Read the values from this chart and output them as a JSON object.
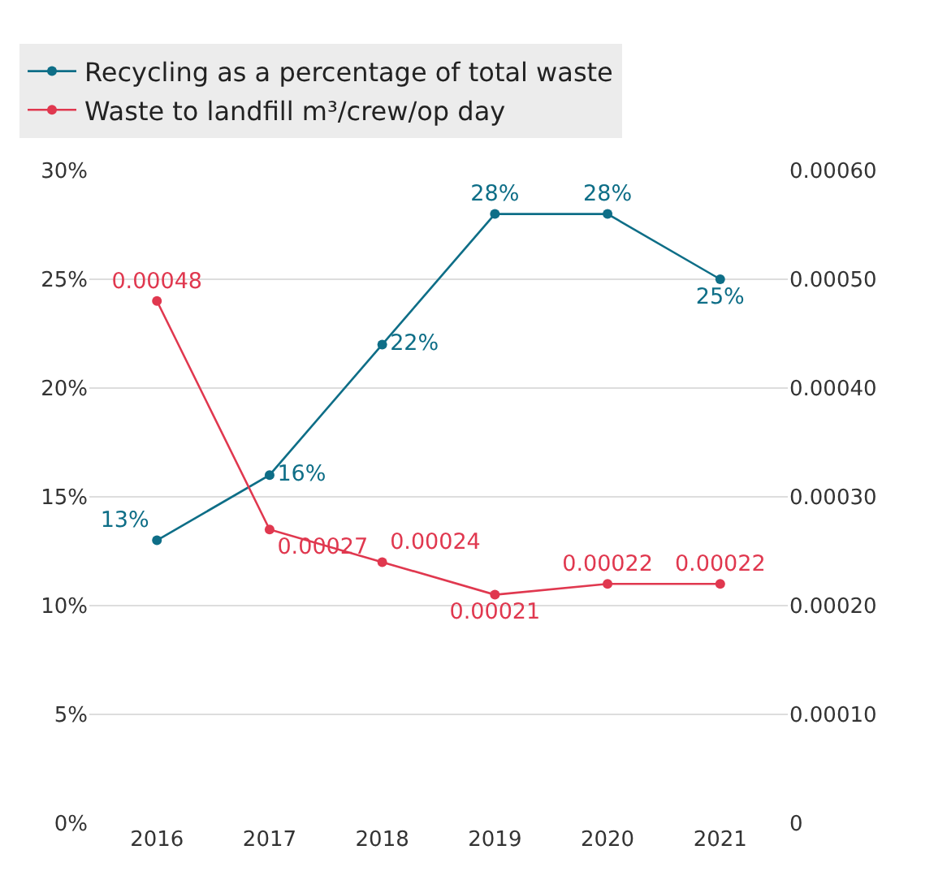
{
  "chart_data": {
    "type": "line",
    "categories": [
      "2016",
      "2017",
      "2018",
      "2019",
      "2020",
      "2021"
    ],
    "series": [
      {
        "name": "Recycling as a percentage of total waste",
        "color": "#0e6e87",
        "values": [
          13,
          16,
          22,
          28,
          28,
          25
        ],
        "value_labels": [
          "13%",
          "16%",
          "22%",
          "28%",
          "28%",
          "25%"
        ]
      },
      {
        "name": "Waste to landfill m³/crew/op day",
        "color": "#e0384f",
        "axis": "y2",
        "values": [
          0.00048,
          0.00027,
          0.00024,
          0.00021,
          0.00022,
          0.00022
        ],
        "value_labels": [
          "0.00048",
          "0.00027",
          "0.00024",
          "0.00021",
          "0.00022",
          "0.00022"
        ]
      }
    ],
    "ylim": [
      0,
      30
    ],
    "yticks": [
      {
        "value": 0,
        "label": "0%"
      },
      {
        "value": 5,
        "label": "5%"
      },
      {
        "value": 10,
        "label": "10%"
      },
      {
        "value": 15,
        "label": "15%"
      },
      {
        "value": 20,
        "label": "20%"
      },
      {
        "value": 25,
        "label": "25%"
      },
      {
        "value": 30,
        "label": "30%"
      }
    ],
    "y2lim": [
      0,
      0.0006
    ],
    "y2ticks": [
      {
        "value": 0,
        "label": "0"
      },
      {
        "value": 0.0001,
        "label": "0.00010"
      },
      {
        "value": 0.0002,
        "label": "0.00020"
      },
      {
        "value": 0.0003,
        "label": "0.00030"
      },
      {
        "value": 0.0004,
        "label": "0.00040"
      },
      {
        "value": 0.0005,
        "label": "0.00050"
      },
      {
        "value": 0.0006,
        "label": "0.00060"
      }
    ],
    "grid": "y",
    "legend": "top",
    "marker": "circle",
    "line_style": "solid"
  }
}
